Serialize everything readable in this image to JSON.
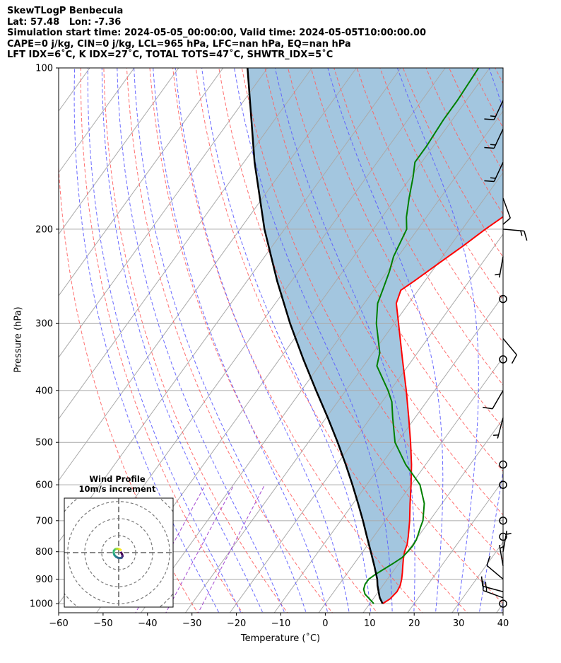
{
  "header": {
    "line1": "SkewTLogP Benbecula",
    "line2": "Lat: 57.48   Lon: -7.36",
    "line3": "Simulation start time: 2024-05-05_00:00:00, Valid time: 2024-05-05T10:00:00.00",
    "line4": "CAPE=0 j/kg, CIN=0 j/kg, LCL=965 hPa, LFC=nan hPa, EQ=nan hPa",
    "line5": "LFT IDX=6˚C, K IDX=27˚C, TOTAL TOTS=47˚C, SHWTR_IDX=5˚C"
  },
  "colors": {
    "temperature": "#ff0000",
    "dewpoint": "#008000",
    "parcel": "#000000",
    "shading": "#a3c6df",
    "dry_adiabat": "#ff6060",
    "moist_adiabat": "#5b5bff",
    "mixing_ratio": "#9933cc",
    "isotherm": "#aaaaaa",
    "isobar": "#aaaaaa",
    "hodo_ring": "#777777"
  },
  "chart_data": {
    "type": "line",
    "title": "",
    "xlabel": "Temperature (˚C)",
    "ylabel": "Pressure (hPa)",
    "xlim": [
      -60,
      40
    ],
    "ylim": [
      1040,
      100
    ],
    "y_scale": "log",
    "skew_deg_per_decade": 87,
    "x_ticks": [
      -60,
      -50,
      -40,
      -30,
      -20,
      -10,
      0,
      10,
      20,
      30,
      40
    ],
    "x_tick_labels": [
      "−60",
      "−50",
      "−40",
      "−30",
      "−20",
      "−10",
      "0",
      "10",
      "20",
      "30",
      "40"
    ],
    "y_ticks": [
      100,
      200,
      300,
      400,
      500,
      600,
      700,
      800,
      900,
      1000
    ],
    "y_tick_labels": [
      "100",
      "200",
      "300",
      "400",
      "500",
      "600",
      "700",
      "800",
      "900",
      "1000"
    ],
    "grid": true,
    "temperature": {
      "p": [
        1000,
        980,
        950,
        925,
        900,
        875,
        850,
        825,
        800,
        775,
        750,
        700,
        650,
        600,
        550,
        500,
        450,
        400,
        350,
        300,
        275,
        260,
        250,
        230,
        215,
        200,
        185,
        175,
        165,
        150,
        140,
        125,
        110,
        100
      ],
      "t": [
        12.9,
        13.8,
        14.2,
        13.9,
        13.2,
        12.3,
        11.3,
        10.3,
        9.4,
        8.8,
        7.8,
        5.5,
        2.8,
        0.0,
        -3.2,
        -7.0,
        -11.4,
        -16.4,
        -22.3,
        -29.0,
        -32.8,
        -33.9,
        -32.4,
        -29.5,
        -27.1,
        -24.8,
        -21.9,
        -20.3,
        -18.6,
        -16.7,
        -15.7,
        -15.0,
        -13.9,
        -13.1
      ]
    },
    "dewpoint": {
      "p": [
        1000,
        980,
        960,
        940,
        920,
        900,
        880,
        860,
        840,
        820,
        800,
        780,
        760,
        740,
        720,
        700,
        650,
        600,
        550,
        500,
        450,
        420,
        400,
        360,
        340,
        300,
        275,
        260,
        240,
        225,
        200,
        190,
        175,
        160,
        150,
        140,
        125,
        115,
        100
      ],
      "t": [
        10.9,
        9.2,
        7.4,
        6.3,
        5.8,
        5.8,
        6.6,
        7.7,
        8.8,
        9.8,
        10.1,
        10.3,
        10.1,
        9.6,
        9.0,
        8.5,
        6.0,
        2.0,
        -4.5,
        -10.5,
        -15.0,
        -17.8,
        -20.5,
        -27.0,
        -28.5,
        -34.0,
        -37.0,
        -38.0,
        -39.5,
        -41.0,
        -42.5,
        -44.5,
        -47.0,
        -49.5,
        -51.5,
        -51.5,
        -52.0,
        -52.0,
        -52.5
      ]
    },
    "parcel": {
      "p": [
        1000,
        975,
        965,
        925,
        900,
        850,
        800,
        750,
        700,
        650,
        600,
        550,
        500,
        450,
        400,
        350,
        300,
        250,
        200,
        150,
        100
      ],
      "t": [
        12.9,
        11.3,
        10.8,
        8.8,
        7.7,
        4.9,
        1.8,
        -1.5,
        -5.0,
        -8.9,
        -13.2,
        -18.0,
        -23.4,
        -29.6,
        -36.7,
        -44.6,
        -53.4,
        -63.2,
        -74.5,
        -87.6,
        -104.5
      ]
    },
    "wind_barbs": [
      {
        "p": 1000,
        "speed_kt": 0
      },
      {
        "p": 975,
        "speed_kt": 15,
        "dir": 290
      },
      {
        "p": 950,
        "speed_kt": 15,
        "dir": 285
      },
      {
        "p": 900,
        "speed_kt": 10,
        "dir": 310
      },
      {
        "p": 850,
        "speed_kt": 5,
        "dir": 350
      },
      {
        "p": 800,
        "speed_kt": 5,
        "dir": 10
      },
      {
        "p": 750,
        "speed_kt": 0
      },
      {
        "p": 700,
        "speed_kt": 0
      },
      {
        "p": 600,
        "speed_kt": 0
      },
      {
        "p": 550,
        "speed_kt": 0
      },
      {
        "p": 450,
        "speed_kt": 5,
        "dir": 195
      },
      {
        "p": 400,
        "speed_kt": 10,
        "dir": 210
      },
      {
        "p": 350,
        "speed_kt": 0
      },
      {
        "p": 320,
        "speed_kt": 10,
        "dir": 140
      },
      {
        "p": 270,
        "speed_kt": 0
      },
      {
        "p": 225,
        "speed_kt": 5,
        "dir": 190
      },
      {
        "p": 200,
        "speed_kt": 15,
        "dir": 95
      },
      {
        "p": 175,
        "speed_kt": 10,
        "dir": 160
      },
      {
        "p": 150,
        "speed_kt": 15,
        "dir": 205
      },
      {
        "p": 130,
        "speed_kt": 15,
        "dir": 205
      },
      {
        "p": 115,
        "speed_kt": 15,
        "dir": 205
      }
    ],
    "hodograph": {
      "title": "Wind Profile",
      "subtitle": "10m/s increment",
      "ring_speeds_ms": [
        10,
        20,
        30,
        40
      ],
      "range_ms": 32,
      "u": [
        1.5,
        2.0,
        2.3,
        1.8,
        0.8,
        -0.5,
        -1.5,
        -2.5,
        -3.0,
        -2.8,
        -2.0,
        -1.0,
        0.5,
        1.2
      ],
      "v": [
        0.0,
        -1.0,
        -2.0,
        -3.0,
        -3.2,
        -3.0,
        -2.5,
        -1.5,
        0.0,
        1.2,
        2.0,
        2.3,
        2.0,
        1.6
      ]
    }
  }
}
